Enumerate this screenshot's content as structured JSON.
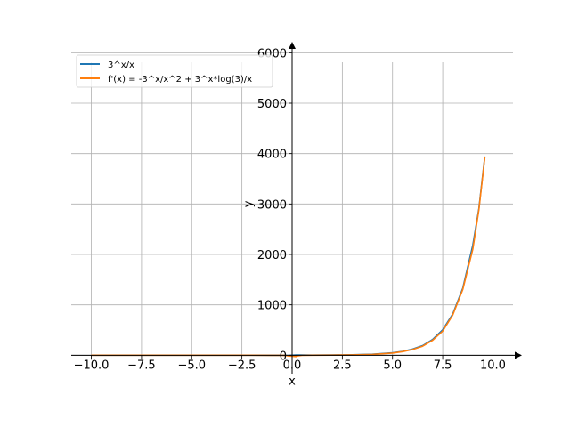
{
  "chart_data": {
    "type": "line",
    "title": "",
    "xlabel": "x",
    "ylabel": "y",
    "xlim": [
      -11,
      11
    ],
    "ylim": [
      -100,
      6200
    ],
    "grid": true,
    "legend_position": "top-left",
    "x_ticks": [
      -10.0,
      -7.5,
      -5.0,
      -2.5,
      0.0,
      2.5,
      5.0,
      7.5,
      10.0
    ],
    "x_tick_labels": [
      "−10.0",
      "−7.5",
      "−5.0",
      "−2.5",
      "0.0",
      "2.5",
      "5.0",
      "7.5",
      "10.0"
    ],
    "y_ticks": [
      0,
      1000,
      2000,
      3000,
      4000,
      5000,
      6000
    ],
    "y_tick_labels": [
      "0",
      "1000",
      "2000",
      "3000",
      "4000",
      "5000",
      "6000"
    ],
    "series": [
      {
        "name": "3^x/x",
        "color": "#1f77b4",
        "x": [
          -10,
          -8,
          -6,
          -4,
          -2,
          -1,
          -0.5,
          -0.3,
          -0.2,
          0.2,
          0.3,
          0.5,
          1,
          2,
          3,
          4,
          5,
          5.5,
          6,
          6.5,
          7,
          7.5,
          8,
          8.5,
          9,
          9.3,
          9.6
        ],
        "y": [
          0.0,
          0.0,
          0.0,
          0.0,
          -0.06,
          -0.33,
          -1.15,
          -2.4,
          -4.0,
          6.2,
          4.6,
          3.5,
          3.0,
          4.5,
          9.0,
          20.3,
          48.6,
          77.1,
          121.5,
          190.7,
          312.4,
          506.1,
          820.1,
          1327.4,
          2187.0,
          2908.0,
          3943.0
        ]
      },
      {
        "name": "f'(x) = -3^x/x^2 + 3^x*log(3)/x",
        "color": "#ff7f0e",
        "x": [
          -10,
          -8,
          -6,
          -4,
          -2,
          -1,
          -0.5,
          -0.3,
          -0.2,
          0.2,
          0.3,
          0.5,
          1,
          2,
          3,
          4,
          5,
          5.5,
          6,
          6.5,
          7,
          7.5,
          8,
          8.5,
          9,
          9.3,
          9.6
        ],
        "y": [
          0.0,
          0.0,
          0.0,
          0.0,
          -0.08,
          -0.7,
          -2.0,
          -5.0,
          -13.0,
          -25.0,
          -10.0,
          -3.0,
          0.3,
          2.7,
          6.9,
          17.2,
          43.7,
          70.8,
          113.2,
          179.4,
          297.1,
          478.6,
          798.4,
          1303.6,
          2106.3,
          2884.5,
          3931.0
        ]
      }
    ]
  }
}
